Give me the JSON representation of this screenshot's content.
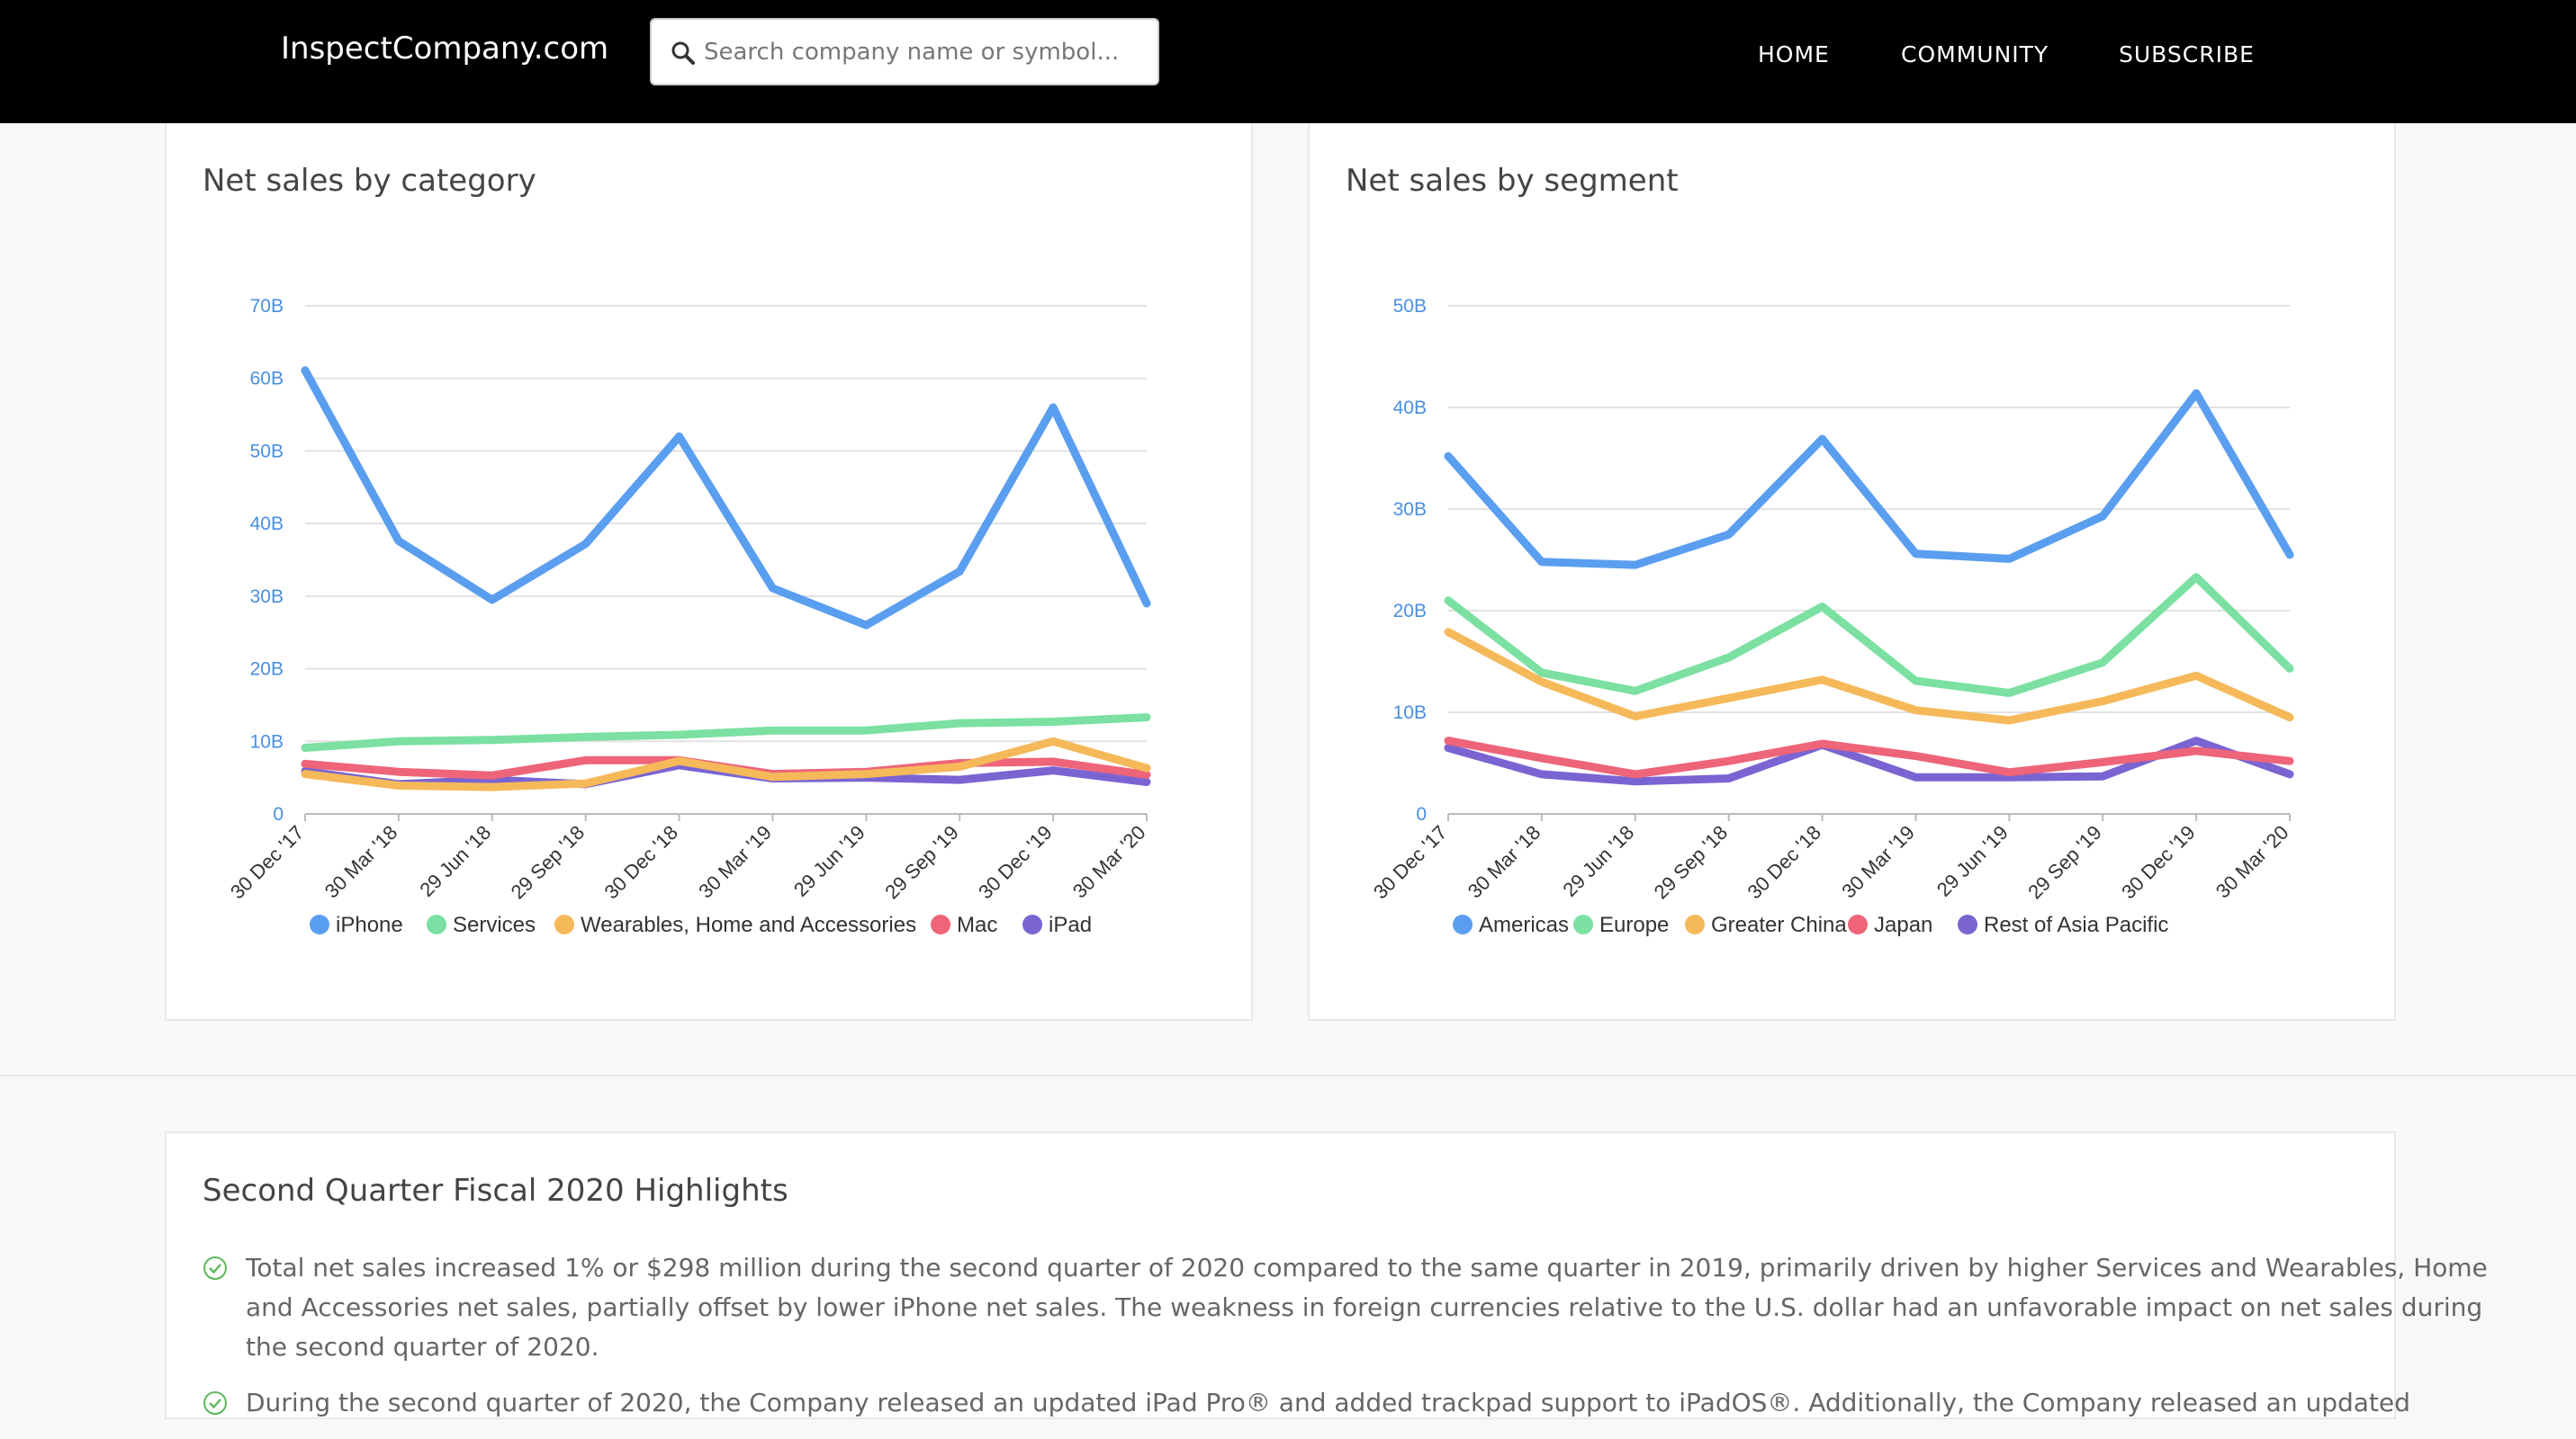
{
  "navbar": {
    "brand": "InspectCompany.com",
    "search_placeholder": "Search company name or symbol...",
    "links": [
      "HOME",
      "COMMUNITY",
      "SUBSCRIBE"
    ]
  },
  "charts": [
    {
      "title": "Net sales by category"
    },
    {
      "title": "Net sales by segment"
    }
  ],
  "chart_data": [
    {
      "type": "line",
      "title": "Net sales by category",
      "x": [
        "30 Dec '17",
        "30 Mar '18",
        "29 Jun '18",
        "29 Sep '18",
        "30 Dec '18",
        "30 Mar '19",
        "29 Jun '19",
        "29 Sep '19",
        "30 Dec '19",
        "30 Mar '20"
      ],
      "ylim": [
        0,
        70
      ],
      "yticks": [
        "0",
        "10B",
        "20B",
        "30B",
        "40B",
        "50B",
        "60B",
        "70B"
      ],
      "grid": true,
      "legend": "bottom",
      "series": [
        {
          "name": "iPhone",
          "color": "#5a9ef0",
          "values": [
            61.1,
            37.6,
            29.5,
            37.2,
            52.0,
            31.1,
            26.0,
            33.4,
            56.0,
            29.0
          ]
        },
        {
          "name": "Services",
          "color": "#7be0a1",
          "values": [
            9.1,
            10.0,
            10.2,
            10.6,
            10.9,
            11.5,
            11.5,
            12.5,
            12.7,
            13.3
          ]
        },
        {
          "name": "Wearables, Home and Accessories",
          "color": "#f5b95a",
          "values": [
            5.5,
            3.9,
            3.7,
            4.2,
            7.3,
            5.1,
            5.5,
            6.5,
            10.0,
            6.3
          ]
        },
        {
          "name": "Mac",
          "color": "#ee6479",
          "values": [
            6.9,
            5.8,
            5.3,
            7.4,
            7.4,
            5.5,
            5.8,
            7.0,
            7.2,
            5.4
          ]
        },
        {
          "name": "iPad",
          "color": "#7a64d2",
          "values": [
            5.9,
            4.1,
            4.7,
            4.1,
            6.7,
            4.9,
            5.0,
            4.7,
            6.0,
            4.4
          ]
        }
      ]
    },
    {
      "type": "line",
      "title": "Net sales by segment",
      "x": [
        "30 Dec '17",
        "30 Mar '18",
        "29 Jun '18",
        "29 Sep '18",
        "30 Dec '18",
        "30 Mar '19",
        "29 Jun '19",
        "29 Sep '19",
        "30 Dec '19",
        "30 Mar '20"
      ],
      "ylim": [
        0,
        50
      ],
      "yticks": [
        "0",
        "10B",
        "20B",
        "30B",
        "40B",
        "50B"
      ],
      "grid": true,
      "legend": "bottom",
      "series": [
        {
          "name": "Americas",
          "color": "#5a9ef0",
          "values": [
            35.2,
            24.8,
            24.5,
            27.5,
            36.9,
            25.6,
            25.1,
            29.3,
            41.4,
            25.5
          ]
        },
        {
          "name": "Europe",
          "color": "#7be0a1",
          "values": [
            21.0,
            13.9,
            12.1,
            15.4,
            20.4,
            13.1,
            11.9,
            14.9,
            23.3,
            14.3
          ]
        },
        {
          "name": "Greater China",
          "color": "#f5b95a",
          "values": [
            17.9,
            13.0,
            9.6,
            11.4,
            13.2,
            10.2,
            9.2,
            11.1,
            13.6,
            9.5
          ]
        },
        {
          "name": "Japan",
          "color": "#ee6479",
          "values": [
            7.2,
            5.5,
            3.9,
            5.2,
            6.9,
            5.7,
            4.1,
            5.1,
            6.2,
            5.2
          ]
        },
        {
          "name": "Rest of Asia Pacific",
          "color": "#7a64d2",
          "values": [
            6.5,
            3.9,
            3.2,
            3.5,
            6.8,
            3.6,
            3.6,
            3.7,
            7.2,
            3.9
          ]
        }
      ]
    }
  ],
  "highlights": {
    "title": "Second Quarter Fiscal 2020 Highlights",
    "items": [
      "Total net sales increased 1% or $298 million during the second quarter of 2020 compared to the same quarter in 2019, primarily driven by higher Services and Wearables, Home and Accessories net sales, partially offset by lower iPhone net sales. The weakness in foreign currencies relative to the U.S. dollar had an unfavorable impact on net sales during the second quarter of 2020.",
      "During the second quarter of 2020, the Company released an updated iPad Pro® and added trackpad support to iPadOS®. Additionally, the Company released an updated"
    ]
  }
}
